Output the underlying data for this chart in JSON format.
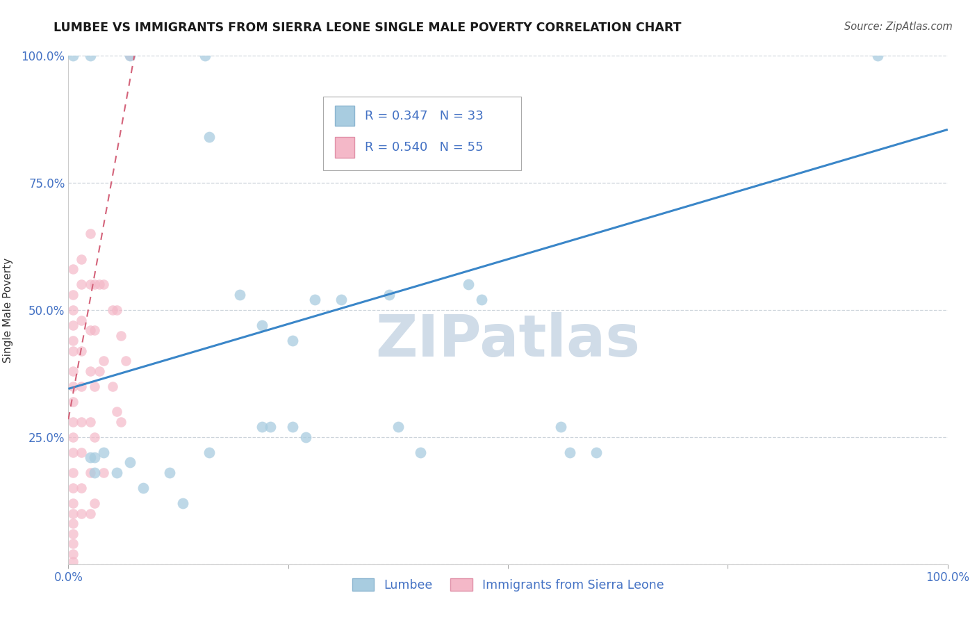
{
  "title": "LUMBEE VS IMMIGRANTS FROM SIERRA LEONE SINGLE MALE POVERTY CORRELATION CHART",
  "source": "Source: ZipAtlas.com",
  "ylabel": "Single Male Poverty",
  "y_ticks": [
    0.0,
    0.25,
    0.5,
    0.75,
    1.0
  ],
  "y_tick_labels": [
    "",
    "25.0%",
    "50.0%",
    "75.0%",
    "100.0%"
  ],
  "x_tick_labels": [
    "0.0%",
    "",
    "",
    "",
    "100.0%"
  ],
  "xlim": [
    0.0,
    1.0
  ],
  "ylim": [
    0.0,
    1.0
  ],
  "lumbee_R": 0.347,
  "lumbee_N": 33,
  "sierra_leone_R": 0.54,
  "sierra_leone_N": 55,
  "legend_lumbee": "Lumbee",
  "legend_sierra_leone": "Immigrants from Sierra Leone",
  "blue_color": "#a8cce0",
  "pink_color": "#f4b8c8",
  "blue_line_color": "#3a86c8",
  "pink_line_color": "#d4637a",
  "blue_line_start_x": 0.0,
  "blue_line_start_y": 0.345,
  "blue_line_end_x": 1.0,
  "blue_line_end_y": 0.855,
  "pink_line_start_x": 0.0,
  "pink_line_start_y": 0.285,
  "pink_line_end_x": 0.075,
  "pink_line_end_y": 1.0,
  "watermark_text": "ZIPatlas",
  "watermark_color": "#d0dce8",
  "background_color": "#ffffff",
  "lumbee_x": [
    0.005,
    0.025,
    0.07,
    0.155,
    0.16,
    0.195,
    0.22,
    0.255,
    0.28,
    0.31,
    0.365,
    0.375,
    0.4,
    0.455,
    0.47,
    0.56,
    0.57,
    0.6,
    0.025,
    0.03,
    0.03,
    0.04,
    0.055,
    0.07,
    0.085,
    0.115,
    0.13,
    0.16,
    0.22,
    0.23,
    0.255,
    0.27,
    0.92
  ],
  "lumbee_y": [
    1.0,
    1.0,
    1.0,
    1.0,
    0.84,
    0.53,
    0.47,
    0.44,
    0.52,
    0.52,
    0.53,
    0.27,
    0.22,
    0.55,
    0.52,
    0.27,
    0.22,
    0.22,
    0.21,
    0.18,
    0.21,
    0.22,
    0.18,
    0.2,
    0.15,
    0.18,
    0.12,
    0.22,
    0.27,
    0.27,
    0.27,
    0.25,
    1.0
  ],
  "sierra_leone_x": [
    0.005,
    0.005,
    0.005,
    0.005,
    0.005,
    0.005,
    0.005,
    0.005,
    0.005,
    0.005,
    0.005,
    0.005,
    0.005,
    0.005,
    0.005,
    0.005,
    0.005,
    0.005,
    0.005,
    0.005,
    0.005,
    0.015,
    0.015,
    0.015,
    0.015,
    0.015,
    0.015,
    0.015,
    0.015,
    0.015,
    0.025,
    0.025,
    0.025,
    0.025,
    0.025,
    0.025,
    0.025,
    0.03,
    0.03,
    0.03,
    0.03,
    0.03,
    0.035,
    0.035,
    0.04,
    0.04,
    0.04,
    0.05,
    0.05,
    0.055,
    0.055,
    0.06,
    0.06,
    0.065,
    0.07
  ],
  "sierra_leone_y": [
    0.53,
    0.5,
    0.47,
    0.44,
    0.42,
    0.38,
    0.35,
    0.32,
    0.28,
    0.25,
    0.22,
    0.18,
    0.15,
    0.12,
    0.1,
    0.08,
    0.06,
    0.04,
    0.02,
    0.005,
    0.58,
    0.6,
    0.55,
    0.48,
    0.42,
    0.35,
    0.28,
    0.22,
    0.15,
    0.1,
    0.65,
    0.55,
    0.46,
    0.38,
    0.28,
    0.18,
    0.1,
    0.55,
    0.46,
    0.35,
    0.25,
    0.12,
    0.55,
    0.38,
    0.55,
    0.4,
    0.18,
    0.5,
    0.35,
    0.5,
    0.3,
    0.45,
    0.28,
    0.4,
    1.0
  ]
}
